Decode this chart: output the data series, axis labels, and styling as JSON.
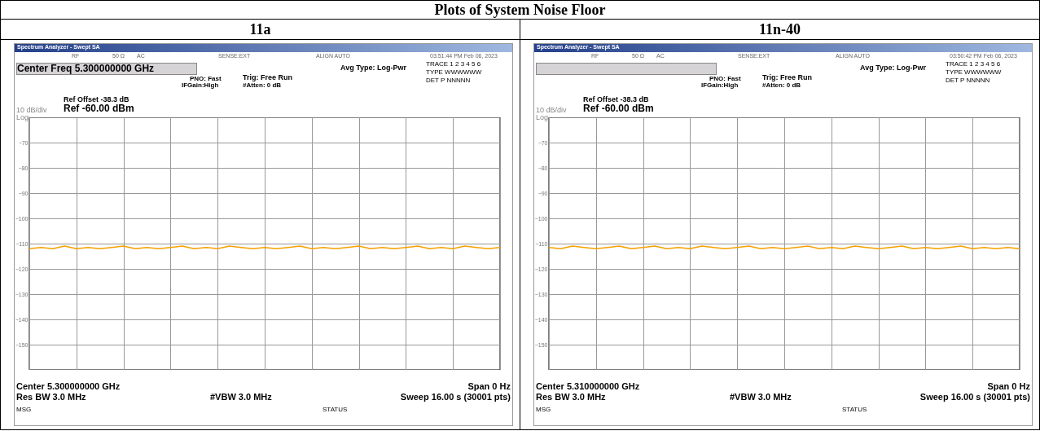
{
  "chart_data": [
    {
      "type": "line",
      "title": "11a",
      "categories": [
        null,
        null,
        null,
        null,
        null,
        null,
        null,
        null,
        null,
        null,
        null,
        null,
        null,
        null,
        null,
        null,
        null,
        null,
        null,
        null,
        null,
        null,
        null,
        null,
        null,
        null,
        null,
        null,
        null,
        null,
        null,
        null,
        null,
        null,
        null,
        null,
        null,
        null,
        null,
        null,
        null
      ],
      "series": [
        {
          "color": "#f5a000",
          "values": [
            -112,
            -111.5,
            -112,
            -111,
            -112,
            -111.5,
            -112,
            -111.5,
            -111,
            -112,
            -111.5,
            -112,
            -111.5,
            -111,
            -112,
            -111.5,
            -112,
            -111,
            -111.5,
            -112,
            -111.5,
            -112,
            -111.5,
            -111,
            -112,
            -111.5,
            -112,
            -111.5,
            -111,
            -112,
            -111.5,
            -112,
            -111.5,
            -111,
            -112,
            -111.5,
            -112,
            -111,
            -111.5,
            -112,
            -111.5
          ]
        }
      ],
      "ylim": [
        -160,
        -60
      ],
      "yticks": [
        -70,
        -80,
        -90,
        -100,
        -110,
        -120,
        -130,
        -140,
        -150
      ],
      "grid": true,
      "annotations": [
        "Spectrum Analyzer - Swept SA",
        "RF",
        "50 Ω",
        "AC",
        "SENSE:EXT",
        "ALIGN AUTO",
        "03:51:44 PM Feb 06, 2023",
        "Center Freq 5.300000000 GHz",
        "PNO: Fast",
        "IFGain:High",
        "Trig: Free Run",
        "#Atten: 0 dB",
        "Avg Type: Log-Pwr",
        "TRACE 1 2 3 4 5 6",
        "TYPE WWWWWW",
        "DET P NNNNN",
        "Ref Offset -38.3 dB",
        "10 dB/div",
        "Ref -60.00 dBm",
        "Log",
        "Center 5.300000000 GHz",
        "Span 0 Hz",
        "Res BW 3.0 MHz",
        "#VBW 3.0 MHz",
        "Sweep  16.00 s (30001 pts)",
        "MSG",
        "STATUS",
        "Plots of System Noise Floor"
      ]
    },
    {
      "type": "line",
      "title": "11n-40",
      "categories": [
        null,
        null,
        null,
        null,
        null,
        null,
        null,
        null,
        null,
        null,
        null,
        null,
        null,
        null,
        null,
        null,
        null,
        null,
        null,
        null,
        null,
        null,
        null,
        null,
        null,
        null,
        null,
        null,
        null,
        null,
        null,
        null,
        null,
        null,
        null,
        null,
        null,
        null,
        null,
        null,
        null
      ],
      "series": [
        {
          "color": "#f5a000",
          "values": [
            -111.5,
            -112,
            -111,
            -111.5,
            -112,
            -111.5,
            -111,
            -112,
            -111.5,
            -111,
            -112,
            -111.5,
            -112,
            -111,
            -111.5,
            -112,
            -111.5,
            -111,
            -112,
            -111.5,
            -112,
            -111.5,
            -111,
            -112,
            -111.5,
            -112,
            -111,
            -111.5,
            -112,
            -111.5,
            -111,
            -112,
            -111.5,
            -112,
            -111.5,
            -111,
            -112,
            -111.5,
            -112,
            -111.5,
            -112
          ]
        }
      ],
      "ylim": [
        -160,
        -60
      ],
      "yticks": [
        -70,
        -80,
        -90,
        -100,
        -110,
        -120,
        -130,
        -140,
        -150
      ],
      "grid": true,
      "annotations": [
        "Spectrum Analyzer - Swept SA",
        "RF",
        "50 Ω",
        "AC",
        "SENSE:EXT",
        "ALIGN AUTO",
        "03:50:42 PM Feb 06, 2023",
        null,
        "PNO: Fast",
        "IFGain:High",
        "Trig: Free Run",
        "#Atten: 0 dB",
        "Avg Type: Log-Pwr",
        "TRACE 1 2 3 4 5 6",
        "TYPE WWWWWW",
        "DET P NNNNN",
        "Ref Offset -38.3 dB",
        "10 dB/div",
        "Ref -60.00 dBm",
        "Log",
        "Center 5.310000000 GHz",
        "Span 0 Hz",
        "Res BW 3.0 MHz",
        "#VBW 3.0 MHz",
        "Sweep  16.00 s (30001 pts)",
        "MSG",
        "STATUS"
      ]
    }
  ]
}
